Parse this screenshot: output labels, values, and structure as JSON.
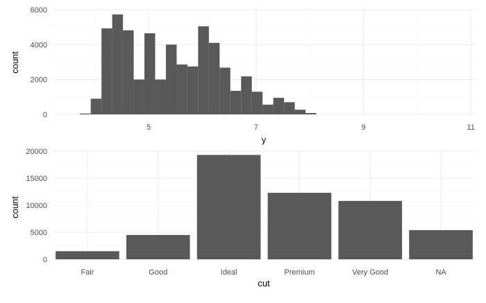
{
  "chart_data": [
    {
      "type": "bar",
      "variant": "histogram",
      "xlabel": "y",
      "ylabel": "count",
      "xlim": [
        3.2,
        11.1
      ],
      "ylim": [
        0,
        6000
      ],
      "x_ticks": [
        5,
        7,
        9,
        11
      ],
      "y_ticks": [
        0,
        2000,
        4000,
        6000
      ],
      "grid": true,
      "bar_color": "#595959",
      "bins": [
        {
          "x0": 3.72,
          "x1": 3.92,
          "count": 50
        },
        {
          "x0": 3.92,
          "x1": 4.12,
          "count": 900
        },
        {
          "x0": 4.12,
          "x1": 4.32,
          "count": 4930
        },
        {
          "x0": 4.32,
          "x1": 4.52,
          "count": 5730
        },
        {
          "x0": 4.52,
          "x1": 4.72,
          "count": 4820
        },
        {
          "x0": 4.72,
          "x1": 4.92,
          "count": 2000
        },
        {
          "x0": 4.92,
          "x1": 5.12,
          "count": 4650
        },
        {
          "x0": 5.12,
          "x1": 5.32,
          "count": 2000
        },
        {
          "x0": 5.32,
          "x1": 5.52,
          "count": 4000
        },
        {
          "x0": 5.52,
          "x1": 5.72,
          "count": 2860
        },
        {
          "x0": 5.72,
          "x1": 5.92,
          "count": 2750
        },
        {
          "x0": 5.92,
          "x1": 6.12,
          "count": 5050
        },
        {
          "x0": 6.12,
          "x1": 6.32,
          "count": 4100
        },
        {
          "x0": 6.32,
          "x1": 6.52,
          "count": 2680
        },
        {
          "x0": 6.52,
          "x1": 6.72,
          "count": 1350
        },
        {
          "x0": 6.72,
          "x1": 6.92,
          "count": 2180
        },
        {
          "x0": 6.92,
          "x1": 7.12,
          "count": 1300
        },
        {
          "x0": 7.12,
          "x1": 7.32,
          "count": 560
        },
        {
          "x0": 7.32,
          "x1": 7.52,
          "count": 950
        },
        {
          "x0": 7.52,
          "x1": 7.72,
          "count": 700
        },
        {
          "x0": 7.72,
          "x1": 7.92,
          "count": 270
        },
        {
          "x0": 7.92,
          "x1": 8.12,
          "count": 80
        }
      ]
    },
    {
      "type": "bar",
      "xlabel": "cut",
      "ylabel": "count",
      "ylim": [
        0,
        20000
      ],
      "y_ticks": [
        0,
        5000,
        10000,
        15000,
        20000
      ],
      "grid": true,
      "bar_color": "#595959",
      "categories": [
        "Fair",
        "Good",
        "Ideal",
        "Premium",
        "Very Good",
        "NA"
      ],
      "values": [
        1500,
        4500,
        19300,
        12300,
        10800,
        5400
      ]
    }
  ]
}
